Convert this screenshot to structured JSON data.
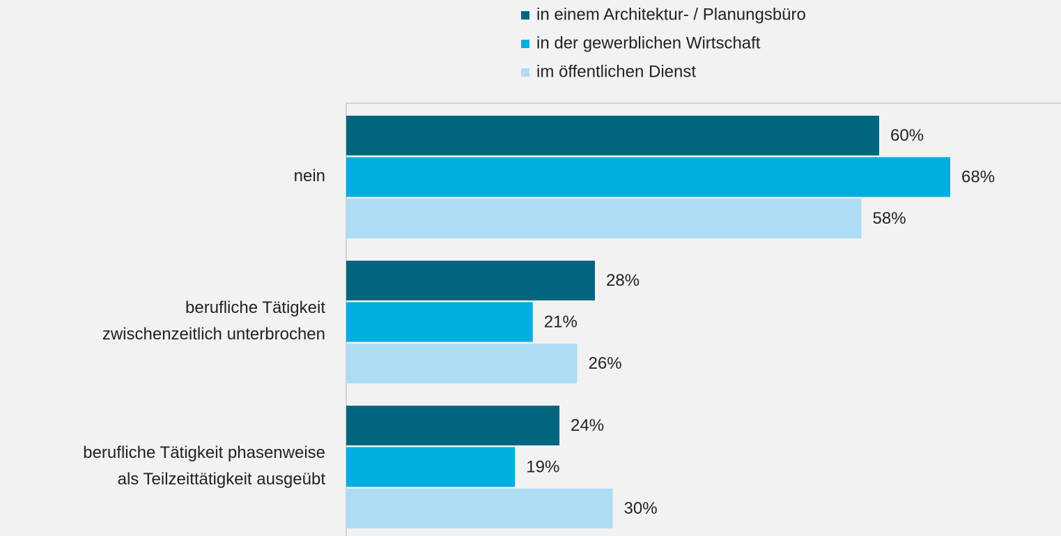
{
  "chart_data": {
    "type": "bar",
    "orientation": "horizontal",
    "categories": [
      "nein",
      "berufliche Tätigkeit\nzwischenzeitlich unterbrochen",
      "berufliche Tätigkeit phasenweise\nals Teilzeittätigkeit ausgeübt"
    ],
    "series": [
      {
        "name": "in einem Architektur- / Planungsbüro",
        "color": "#006680",
        "values": [
          60,
          28,
          24
        ],
        "value_labels": [
          "60%",
          "28%",
          "24%"
        ]
      },
      {
        "name": "in der gewerblichen Wirtschaft",
        "color": "#00aedf",
        "values": [
          68,
          21,
          19
        ],
        "value_labels": [
          "68%",
          "21%",
          "19%"
        ]
      },
      {
        "name": "im öffentlichen Dienst",
        "color": "#addcf4",
        "values": [
          58,
          26,
          30
        ],
        "value_labels": [
          "58%",
          "26%",
          "30%"
        ]
      }
    ],
    "xlim": [
      0,
      80
    ],
    "legend": "top"
  }
}
